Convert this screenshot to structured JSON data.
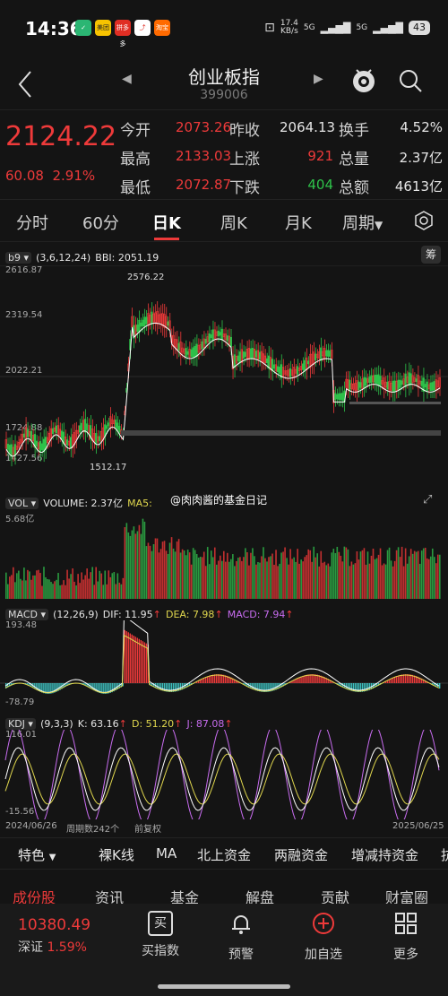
{
  "status_bar": {
    "time": "14:36",
    "apps": [
      "美团",
      "拼多多",
      "淘宝"
    ],
    "net_speed": "17.4",
    "net_unit": "KB/s",
    "sim1": "5G",
    "sim2": "5G",
    "battery": "43"
  },
  "header": {
    "title": "创业板指",
    "code": "399006"
  },
  "quote": {
    "price": "2124.22",
    "change": "60.08",
    "change_pct": "2.91%",
    "fields": [
      {
        "label": "今开",
        "value": "2073.26",
        "color": "#ee3a3a"
      },
      {
        "label": "昨收",
        "value": "2064.13",
        "color": "#e6e6e6"
      },
      {
        "label": "换手",
        "value": "4.52%",
        "color": "#e6e6e6"
      },
      {
        "label": "最高",
        "value": "2133.03",
        "color": "#ee3a3a"
      },
      {
        "label": "上涨",
        "value": "921",
        "color": "#ee3a3a"
      },
      {
        "label": "总量",
        "value": "2.37亿",
        "color": "#e6e6e6"
      },
      {
        "label": "最低",
        "value": "2072.87",
        "color": "#ee3a3a"
      },
      {
        "label": "下跌",
        "value": "404",
        "color": "#2ec24a"
      },
      {
        "label": "总额",
        "value": "4613亿",
        "color": "#e6e6e6"
      }
    ]
  },
  "tabs": [
    "分时",
    "60分",
    "日K",
    "周K",
    "月K",
    "周期"
  ],
  "active_tab": "日K",
  "kline": {
    "indicator": "b9",
    "params": "(3,6,12,24)",
    "bbi_label": "BBI: 2051.19",
    "y_labels": [
      "2616.87",
      "2319.54",
      "2022.21",
      "1724.88",
      "1427.56"
    ],
    "high_mark": "2576.22",
    "low_mark": "1512.17",
    "corner_btn": "筹"
  },
  "volume": {
    "selector": "VOL",
    "label": "VOLUME: 2.37亿",
    "ma_label": "MA5:",
    "watermark": "@肉肉酱的基金日记",
    "y_max": "5.68亿"
  },
  "macd": {
    "selector": "MACD",
    "params": "(12,26,9)",
    "dif": "DIF: 11.95",
    "dea": "DEA: 7.98",
    "macd": "MACD: 7.94",
    "y_max": "193.48",
    "y_min": "-78.79"
  },
  "kdj": {
    "selector": "KDJ",
    "params": "(9,3,3)",
    "k": "K: 63.16",
    "d": "D: 51.20",
    "j": "J: 87.08",
    "y_max": "116.01",
    "y_min": "-15.56"
  },
  "footer_axis": {
    "start_date": "2024/06/26",
    "period_count": "周期数242个",
    "adjust": "前复权",
    "end_date": "2025/06/25"
  },
  "indicator_bar": [
    "特色",
    "裸K线",
    "MA",
    "北上资金",
    "两融资金",
    "增减持资金",
    "抗"
  ],
  "section_tabs": [
    "成份股",
    "资讯",
    "基金",
    "解盘",
    "贡献",
    "财富圈"
  ],
  "bottom_nav": {
    "index_name": "深证",
    "index_value": "10380.49",
    "index_change": "1.59%",
    "items": [
      "买指数",
      "预警",
      "加自选",
      "更多"
    ],
    "buy_icon_char": "买"
  }
}
